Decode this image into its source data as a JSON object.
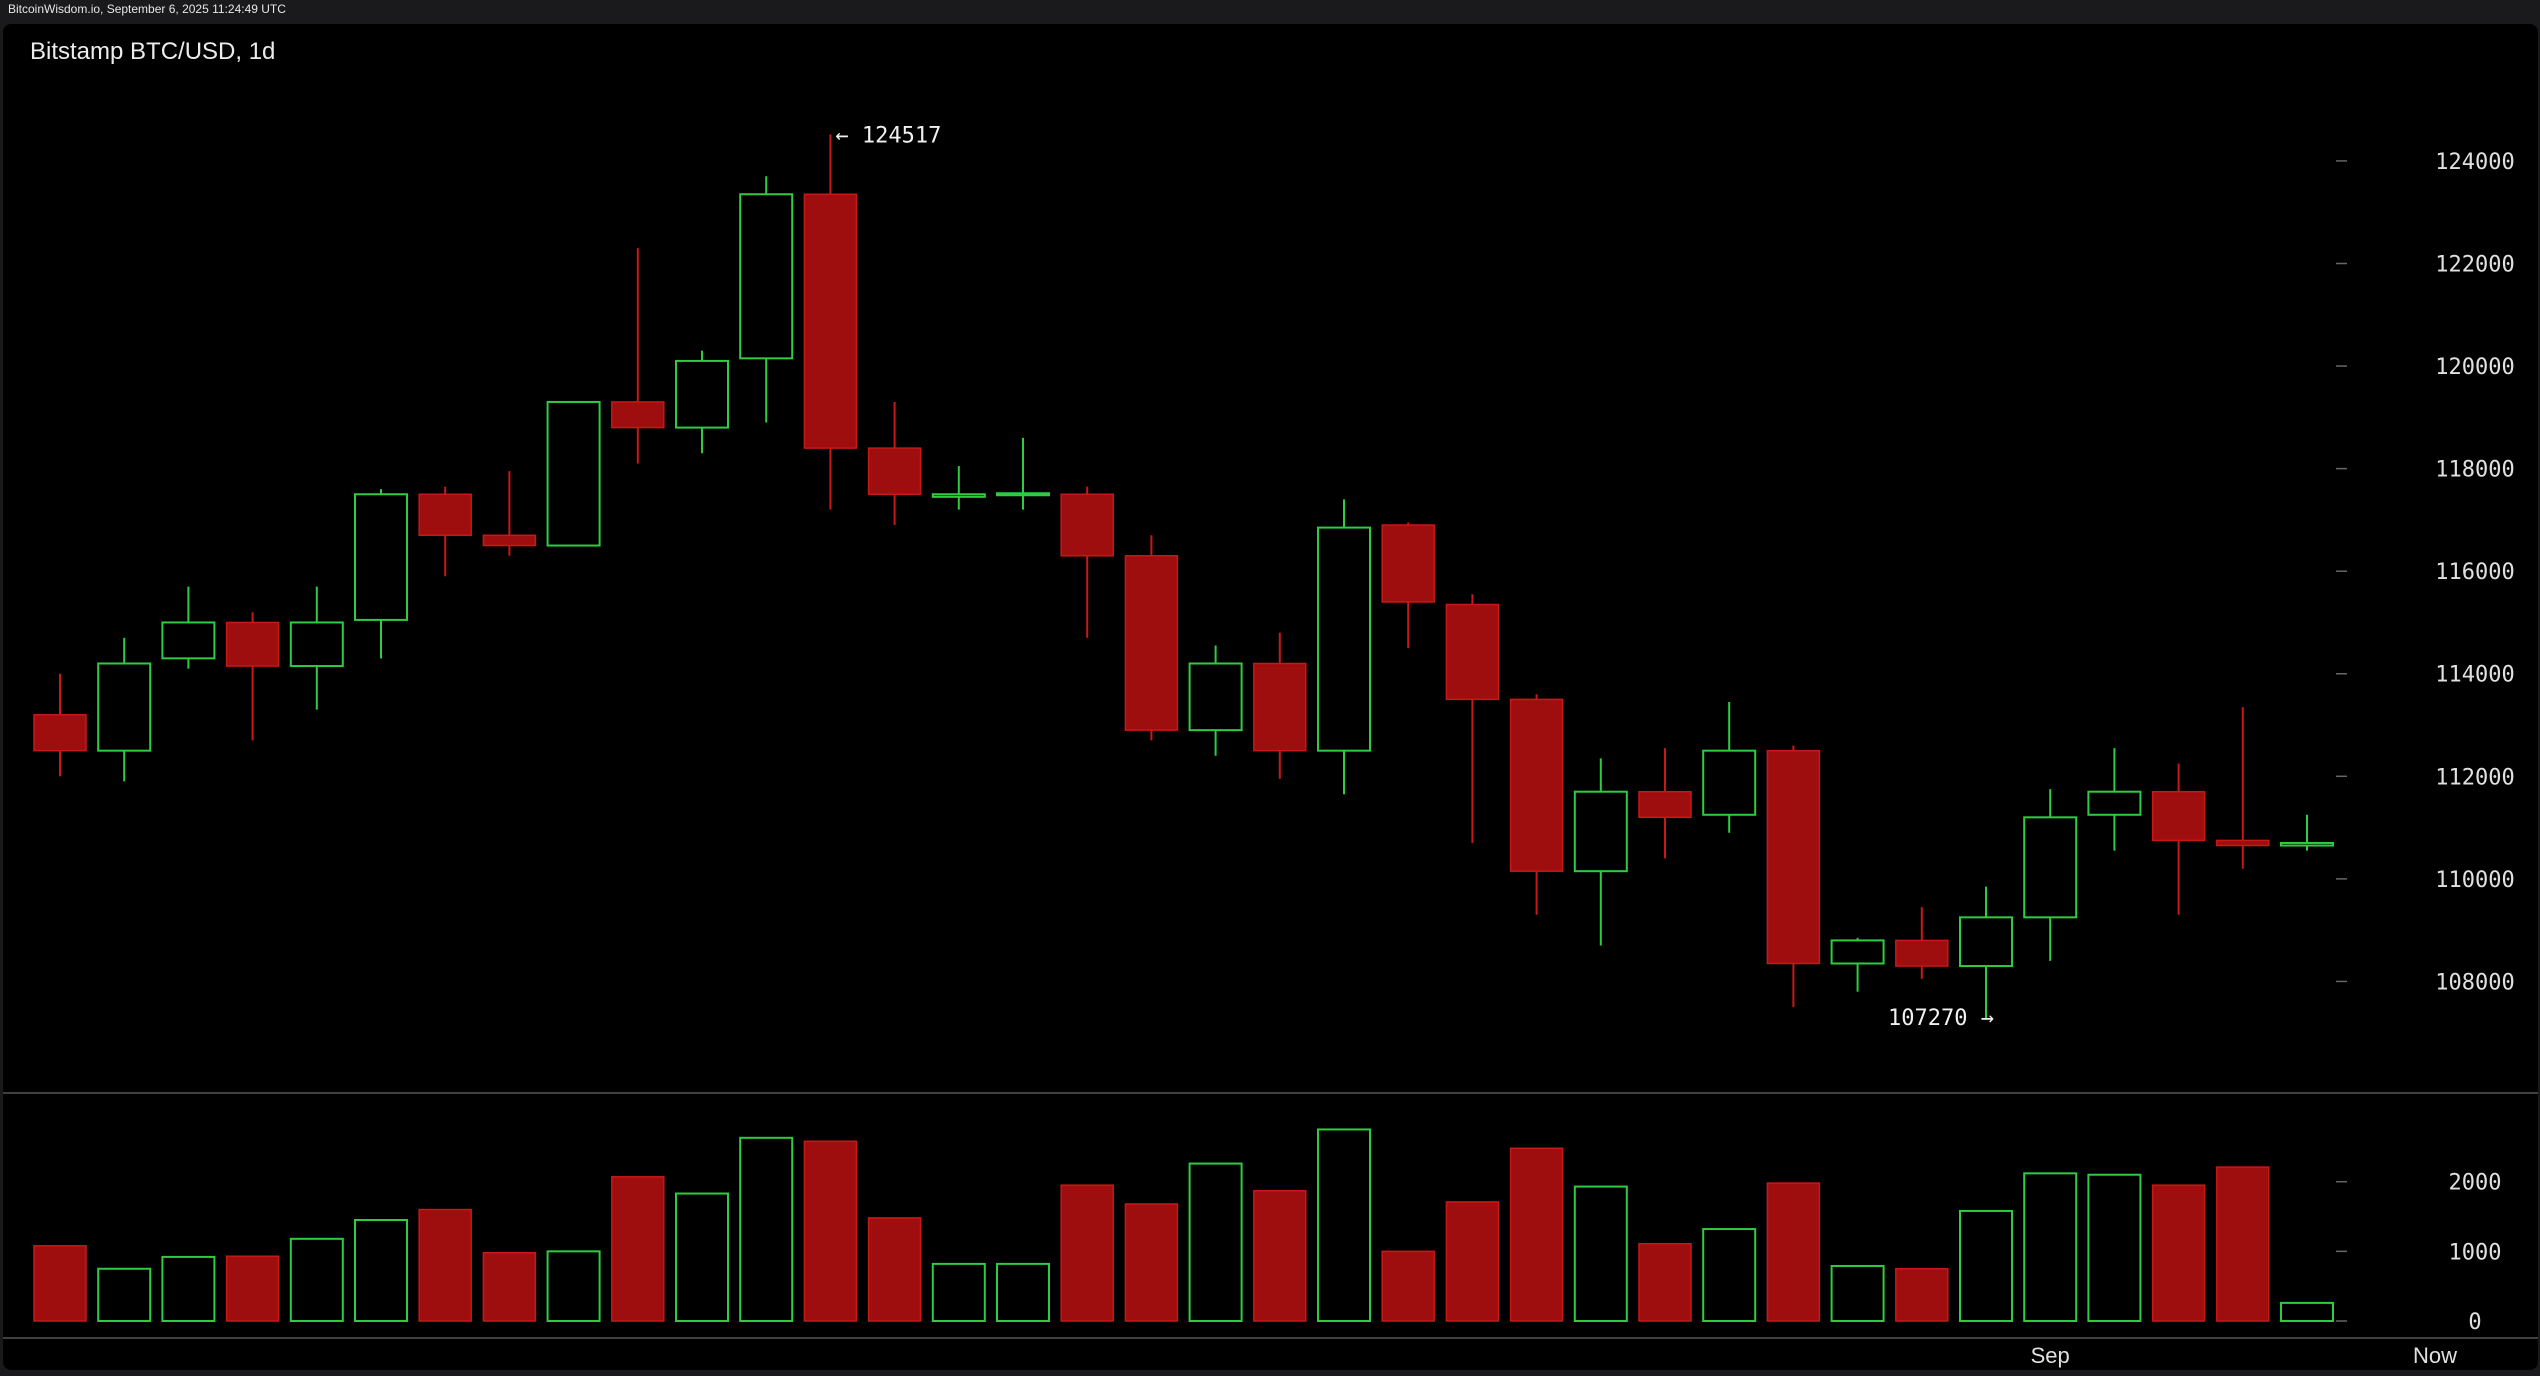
{
  "header": {
    "caption": "BitcoinWisdom.io, September 6, 2025 11:24:49 UTC"
  },
  "chart_data": {
    "type": "candlestick",
    "title": "Bitstamp BTC/USD, 1d",
    "price_axis": {
      "ticks": [
        108000,
        110000,
        112000,
        114000,
        116000,
        118000,
        120000,
        122000,
        124000
      ],
      "range": [
        106000,
        125500
      ]
    },
    "volume_axis": {
      "ticks": [
        0,
        1000,
        2000
      ],
      "range": [
        0,
        2900
      ]
    },
    "x_labels": [
      {
        "label": "Sep",
        "index": 31
      },
      {
        "label": "Now",
        "index": 37
      }
    ],
    "annotations": [
      {
        "text": "← 124517",
        "value": 124517,
        "index": 12,
        "anchor": "high"
      },
      {
        "text": "107270 →",
        "value": 107270,
        "index": 30,
        "anchor": "low"
      }
    ],
    "colors": {
      "up": "#2ecc40",
      "down": "#9e0e0e",
      "down_stroke": "#c81818",
      "axis": "#e0e0e0",
      "grid": "#666666"
    },
    "candles": [
      {
        "o": 113200,
        "h": 114000,
        "l": 112000,
        "c": 112500,
        "v": 1080
      },
      {
        "o": 112500,
        "h": 114700,
        "l": 111900,
        "c": 114200,
        "v": 750
      },
      {
        "o": 114300,
        "h": 115700,
        "l": 114100,
        "c": 115000,
        "v": 920
      },
      {
        "o": 115000,
        "h": 115200,
        "l": 112700,
        "c": 114150,
        "v": 930
      },
      {
        "o": 114150,
        "h": 115700,
        "l": 113300,
        "c": 115000,
        "v": 1180
      },
      {
        "o": 115050,
        "h": 117600,
        "l": 114300,
        "c": 117500,
        "v": 1450
      },
      {
        "o": 117500,
        "h": 117650,
        "l": 115900,
        "c": 116700,
        "v": 1600
      },
      {
        "o": 116700,
        "h": 117950,
        "l": 116300,
        "c": 116500,
        "v": 980
      },
      {
        "o": 116500,
        "h": 119300,
        "l": 116500,
        "c": 119300,
        "v": 1000
      },
      {
        "o": 119300,
        "h": 122300,
        "l": 118100,
        "c": 118800,
        "v": 2070
      },
      {
        "o": 118800,
        "h": 120300,
        "l": 118300,
        "c": 120100,
        "v": 1830
      },
      {
        "o": 120150,
        "h": 123700,
        "l": 118900,
        "c": 123350,
        "v": 2630
      },
      {
        "o": 123350,
        "h": 124517,
        "l": 117200,
        "c": 118400,
        "v": 2580
      },
      {
        "o": 118400,
        "h": 119300,
        "l": 116900,
        "c": 117500,
        "v": 1480
      },
      {
        "o": 117450,
        "h": 118050,
        "l": 117200,
        "c": 117500,
        "v": 820
      },
      {
        "o": 117500,
        "h": 118600,
        "l": 117200,
        "c": 117500,
        "v": 820
      },
      {
        "o": 117500,
        "h": 117650,
        "l": 114700,
        "c": 116300,
        "v": 1950
      },
      {
        "o": 116300,
        "h": 116700,
        "l": 112700,
        "c": 112900,
        "v": 1680
      },
      {
        "o": 112900,
        "h": 114550,
        "l": 112400,
        "c": 114200,
        "v": 2260
      },
      {
        "o": 114200,
        "h": 114800,
        "l": 111950,
        "c": 112500,
        "v": 1870
      },
      {
        "o": 112500,
        "h": 117400,
        "l": 111650,
        "c": 116850,
        "v": 2750
      },
      {
        "o": 116900,
        "h": 116950,
        "l": 114500,
        "c": 115400,
        "v": 1000
      },
      {
        "o": 115350,
        "h": 115550,
        "l": 110700,
        "c": 113500,
        "v": 1710
      },
      {
        "o": 113500,
        "h": 113600,
        "l": 109300,
        "c": 110150,
        "v": 2480
      },
      {
        "o": 110150,
        "h": 112350,
        "l": 108700,
        "c": 111700,
        "v": 1930
      },
      {
        "o": 111700,
        "h": 112550,
        "l": 110400,
        "c": 111200,
        "v": 1110
      },
      {
        "o": 111250,
        "h": 113450,
        "l": 110900,
        "c": 112500,
        "v": 1320
      },
      {
        "o": 112500,
        "h": 112600,
        "l": 107500,
        "c": 108350,
        "v": 1980
      },
      {
        "o": 108350,
        "h": 108850,
        "l": 107800,
        "c": 108800,
        "v": 790
      },
      {
        "o": 108800,
        "h": 109450,
        "l": 108050,
        "c": 108300,
        "v": 750
      },
      {
        "o": 108300,
        "h": 109850,
        "l": 107270,
        "c": 109250,
        "v": 1580
      },
      {
        "o": 109250,
        "h": 111750,
        "l": 108400,
        "c": 111200,
        "v": 2120
      },
      {
        "o": 111250,
        "h": 112550,
        "l": 110550,
        "c": 111700,
        "v": 2100
      },
      {
        "o": 111700,
        "h": 112250,
        "l": 109300,
        "c": 110750,
        "v": 1950
      },
      {
        "o": 110750,
        "h": 113350,
        "l": 110200,
        "c": 110650,
        "v": 2210
      },
      {
        "o": 110650,
        "h": 111250,
        "l": 110550,
        "c": 110700,
        "v": 260
      }
    ]
  }
}
